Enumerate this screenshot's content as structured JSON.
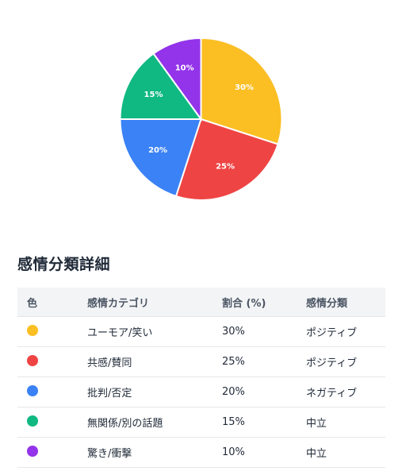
{
  "chart_data": {
    "type": "pie",
    "slices": [
      {
        "label": "ユーモア/笑い",
        "value": 30,
        "display": "30%",
        "color": "#fbbf24"
      },
      {
        "label": "共感/賛同",
        "value": 25,
        "display": "25%",
        "color": "#ef4444"
      },
      {
        "label": "批判/否定",
        "value": 20,
        "display": "20%",
        "color": "#3b82f6"
      },
      {
        "label": "無関係/別の話題",
        "value": 15,
        "display": "15%",
        "color": "#10b981"
      },
      {
        "label": "驚き/衝撃",
        "value": 10,
        "display": "10%",
        "color": "#9333ea"
      }
    ],
    "start_angle": "12 o'clock, clockwise"
  },
  "section": {
    "title": "感情分類詳細"
  },
  "table": {
    "headers": {
      "color": "色",
      "category": "感情カテゴリ",
      "ratio": "割合 (%)",
      "classification": "感情分類"
    },
    "rows": [
      {
        "color": "#fbbf24",
        "category": "ユーモア/笑い",
        "ratio": "30%",
        "classification": "ポジティブ"
      },
      {
        "color": "#ef4444",
        "category": "共感/賛同",
        "ratio": "25%",
        "classification": "ポジティブ"
      },
      {
        "color": "#3b82f6",
        "category": "批判/否定",
        "ratio": "20%",
        "classification": "ネガティブ"
      },
      {
        "color": "#10b981",
        "category": "無関係/別の話題",
        "ratio": "15%",
        "classification": "中立"
      },
      {
        "color": "#9333ea",
        "category": "驚き/衝撃",
        "ratio": "10%",
        "classification": "中立"
      }
    ]
  }
}
